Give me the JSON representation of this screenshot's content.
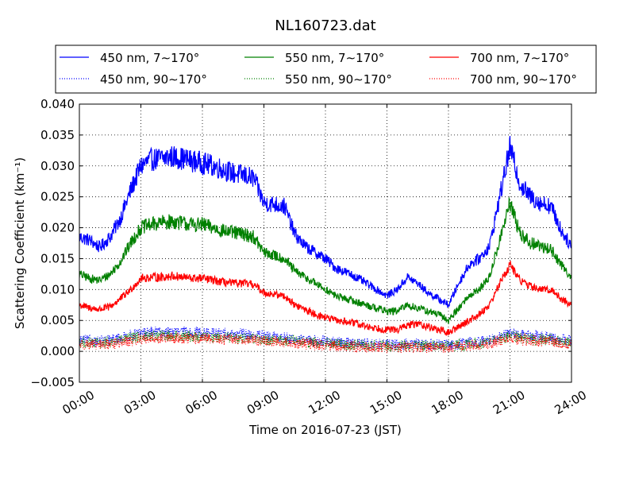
{
  "chart_data": {
    "type": "line",
    "title": "NL160723.dat",
    "xlabel": "Time on 2016-07-23 (JST)",
    "ylabel": "Scattering Coefficient (km⁻¹)",
    "xlim": [
      0,
      24
    ],
    "ylim": [
      -0.005,
      0.04
    ],
    "grid": true,
    "legend_position": "top",
    "x_ticks": [
      0,
      3,
      6,
      9,
      12,
      15,
      18,
      21,
      24
    ],
    "x_tick_labels": [
      "00:00",
      "03:00",
      "06:00",
      "09:00",
      "12:00",
      "15:00",
      "18:00",
      "21:00",
      "24:00"
    ],
    "y_ticks": [
      -0.005,
      0.0,
      0.005,
      0.01,
      0.015,
      0.02,
      0.025,
      0.03,
      0.035,
      0.04
    ],
    "y_tick_labels": [
      "−0.005",
      "0.000",
      "0.005",
      "0.010",
      "0.015",
      "0.020",
      "0.025",
      "0.030",
      "0.035",
      "0.040"
    ],
    "x": [
      0.0,
      0.5,
      1.0,
      1.5,
      2.0,
      2.5,
      3.0,
      3.5,
      4.0,
      4.5,
      5.0,
      5.5,
      6.0,
      6.5,
      7.0,
      7.5,
      8.0,
      8.5,
      9.0,
      9.5,
      10.0,
      10.5,
      11.0,
      11.5,
      12.0,
      12.5,
      13.0,
      13.5,
      14.0,
      14.5,
      15.0,
      15.5,
      16.0,
      16.5,
      17.0,
      17.5,
      18.0,
      18.5,
      19.0,
      19.5,
      20.0,
      20.5,
      21.0,
      21.5,
      22.0,
      22.5,
      23.0,
      23.5,
      24.0
    ],
    "series": [
      {
        "name": "450 nm, 7∼170°",
        "color": "#0000ff",
        "style": "solid",
        "values": [
          0.0185,
          0.018,
          0.0168,
          0.0185,
          0.0215,
          0.026,
          0.03,
          0.031,
          0.0312,
          0.0315,
          0.0312,
          0.0308,
          0.0305,
          0.03,
          0.0295,
          0.0288,
          0.0285,
          0.028,
          0.024,
          0.0238,
          0.0235,
          0.019,
          0.017,
          0.016,
          0.015,
          0.0135,
          0.0128,
          0.012,
          0.011,
          0.01,
          0.009,
          0.01,
          0.012,
          0.011,
          0.0095,
          0.0085,
          0.0075,
          0.011,
          0.014,
          0.015,
          0.017,
          0.025,
          0.033,
          0.027,
          0.025,
          0.024,
          0.0235,
          0.0195,
          0.017
        ]
      },
      {
        "name": "550 nm, 7∼170°",
        "color": "#008000",
        "style": "solid",
        "values": [
          0.0125,
          0.0118,
          0.0115,
          0.0125,
          0.0145,
          0.0175,
          0.02,
          0.0205,
          0.0208,
          0.021,
          0.0208,
          0.0205,
          0.0205,
          0.02,
          0.0195,
          0.0192,
          0.019,
          0.0185,
          0.016,
          0.0155,
          0.015,
          0.013,
          0.012,
          0.011,
          0.01,
          0.009,
          0.0085,
          0.008,
          0.0075,
          0.007,
          0.0065,
          0.0065,
          0.0075,
          0.007,
          0.0065,
          0.006,
          0.005,
          0.007,
          0.009,
          0.01,
          0.012,
          0.018,
          0.024,
          0.019,
          0.0175,
          0.017,
          0.0165,
          0.014,
          0.012
        ]
      },
      {
        "name": "700 nm, 7∼170°",
        "color": "#ff0000",
        "style": "solid",
        "values": [
          0.0075,
          0.007,
          0.0068,
          0.0072,
          0.0085,
          0.01,
          0.0118,
          0.012,
          0.012,
          0.0122,
          0.012,
          0.0118,
          0.0118,
          0.0115,
          0.0112,
          0.011,
          0.011,
          0.0108,
          0.0095,
          0.0092,
          0.009,
          0.0075,
          0.0068,
          0.006,
          0.0055,
          0.005,
          0.0048,
          0.0045,
          0.004,
          0.0038,
          0.0035,
          0.0035,
          0.0042,
          0.0045,
          0.004,
          0.0035,
          0.003,
          0.004,
          0.005,
          0.006,
          0.0075,
          0.011,
          0.014,
          0.0115,
          0.0105,
          0.01,
          0.01,
          0.0085,
          0.0075
        ]
      },
      {
        "name": "450 nm, 90∼170°",
        "color": "#0000ff",
        "style": "dotted",
        "values": [
          0.0018,
          0.0017,
          0.0016,
          0.0018,
          0.0022,
          0.0026,
          0.003,
          0.0031,
          0.0031,
          0.0031,
          0.0031,
          0.0031,
          0.003,
          0.003,
          0.0029,
          0.0028,
          0.0028,
          0.0027,
          0.0024,
          0.0023,
          0.0023,
          0.002,
          0.0018,
          0.0017,
          0.0016,
          0.0015,
          0.0014,
          0.0013,
          0.0013,
          0.0012,
          0.0011,
          0.0011,
          0.0012,
          0.0012,
          0.0011,
          0.0011,
          0.001,
          0.0012,
          0.0015,
          0.0016,
          0.0018,
          0.0024,
          0.0031,
          0.0027,
          0.0025,
          0.0024,
          0.0023,
          0.002,
          0.0018
        ]
      },
      {
        "name": "550 nm, 90∼170°",
        "color": "#008000",
        "style": "dotted",
        "values": [
          0.0015,
          0.0014,
          0.0013,
          0.0015,
          0.0018,
          0.0021,
          0.0024,
          0.0025,
          0.0025,
          0.0025,
          0.0025,
          0.0024,
          0.0024,
          0.0023,
          0.0023,
          0.0022,
          0.0022,
          0.0021,
          0.0019,
          0.0019,
          0.0018,
          0.0016,
          0.0015,
          0.0014,
          0.0013,
          0.0012,
          0.0011,
          0.0011,
          0.001,
          0.001,
          0.0009,
          0.0009,
          0.001,
          0.001,
          0.0009,
          0.0009,
          0.0008,
          0.001,
          0.0012,
          0.0013,
          0.0015,
          0.002,
          0.0025,
          0.0022,
          0.002,
          0.0019,
          0.0019,
          0.0016,
          0.0015
        ]
      },
      {
        "name": "700 nm, 90∼170°",
        "color": "#ff0000",
        "style": "dotted",
        "values": [
          0.0012,
          0.0011,
          0.001,
          0.0012,
          0.0014,
          0.0017,
          0.002,
          0.0021,
          0.0021,
          0.0021,
          0.0021,
          0.002,
          0.002,
          0.002,
          0.0019,
          0.0019,
          0.0019,
          0.0018,
          0.0016,
          0.0016,
          0.0015,
          0.0013,
          0.0012,
          0.0011,
          0.001,
          0.0009,
          0.0009,
          0.0008,
          0.0007,
          0.0007,
          0.0006,
          0.0006,
          0.0007,
          0.0007,
          0.0006,
          0.0006,
          0.0005,
          0.0007,
          0.0009,
          0.001,
          0.0012,
          0.0017,
          0.0022,
          0.0019,
          0.0017,
          0.0016,
          0.0016,
          0.0013,
          0.0012
        ]
      }
    ],
    "legend_order": [
      0,
      1,
      2,
      3,
      4,
      5
    ]
  }
}
